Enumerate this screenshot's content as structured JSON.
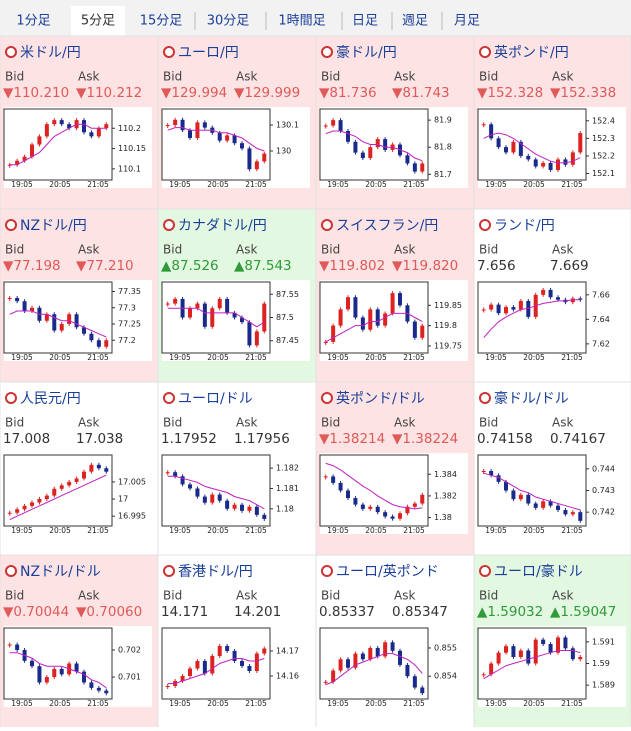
{
  "tabs": [
    "1分足",
    "5分足",
    "15分足",
    "30分足",
    "1時間足",
    "日足",
    "週足",
    "月足"
  ],
  "selected_tab": 1,
  "tiles": [
    {
      "name": "米ドル/円",
      "trend": "down",
      "bid_label": "Bid",
      "ask_label": "Ask",
      "bid": "▼110.210",
      "ask": "▼110.212",
      "ylim": [
        110.08,
        110.24
      ],
      "yticks": [
        110.2,
        110.15,
        110.1
      ],
      "xticks": [
        "19:05",
        "20:05",
        "21:05"
      ],
      "closes": [
        110.11,
        110.12,
        110.13,
        110.16,
        110.18,
        110.21,
        110.22,
        110.21,
        110.2,
        110.22,
        110.19,
        110.18,
        110.2,
        110.21
      ],
      "ma": [
        110.11,
        110.11,
        110.12,
        110.13,
        110.14,
        110.16,
        110.18,
        110.19,
        110.2,
        110.21,
        110.21,
        110.2,
        110.2,
        110.2
      ]
    },
    {
      "name": "ユーロ/円",
      "trend": "down",
      "bid_label": "Bid",
      "ask_label": "Ask",
      "bid": "▼129.994",
      "ask": "▼129.999",
      "ylim": [
        129.9,
        130.15
      ],
      "yticks": [
        130.1,
        130
      ],
      "xticks": [
        "19:05",
        "20:05",
        "21:05"
      ],
      "closes": [
        130.1,
        130.12,
        130.08,
        130.05,
        130.11,
        130.09,
        130.07,
        130.04,
        130.06,
        130.03,
        130.01,
        129.93,
        129.96,
        129.99
      ],
      "ma": [
        130.08,
        130.09,
        130.09,
        130.08,
        130.08,
        130.08,
        130.08,
        130.07,
        130.07,
        130.06,
        130.05,
        130.03,
        130.01,
        130
      ]
    },
    {
      "name": "豪ドル/円",
      "trend": "down",
      "bid_label": "Bid",
      "ask_label": "Ask",
      "bid": "▼81.736",
      "ask": "▼81.743",
      "ylim": [
        81.69,
        81.93
      ],
      "yticks": [
        81.9,
        81.8,
        81.7
      ],
      "xticks": [
        "19:05",
        "20:05",
        "21:05"
      ],
      "closes": [
        81.88,
        81.9,
        81.86,
        81.82,
        81.78,
        81.76,
        81.8,
        81.83,
        81.79,
        81.81,
        81.77,
        81.74,
        81.71,
        81.74
      ],
      "ma": [
        81.85,
        81.86,
        81.86,
        81.85,
        81.84,
        81.82,
        81.81,
        81.81,
        81.8,
        81.8,
        81.79,
        81.78,
        81.76,
        81.75
      ]
    },
    {
      "name": "英ポンド/円",
      "trend": "down",
      "bid_label": "Bid",
      "ask_label": "Ask",
      "bid": "▼152.328",
      "ask": "▼152.338",
      "ylim": [
        152.08,
        152.45
      ],
      "yticks": [
        152.4,
        152.3,
        152.2,
        152.1
      ],
      "xticks": [
        "19:05",
        "20:05",
        "21:05"
      ],
      "closes": [
        152.38,
        152.3,
        152.25,
        152.22,
        152.28,
        152.2,
        152.18,
        152.14,
        152.16,
        152.12,
        152.18,
        152.15,
        152.22,
        152.33
      ],
      "ma": [
        152.3,
        152.32,
        152.33,
        152.32,
        152.3,
        152.27,
        152.24,
        152.21,
        152.19,
        152.17,
        152.16,
        152.16,
        152.17,
        152.19
      ]
    },
    {
      "name": "NZドル/円",
      "trend": "down",
      "bid_label": "Bid",
      "ask_label": "Ask",
      "bid": "▼77.198",
      "ask": "▼77.210",
      "ylim": [
        77.17,
        77.37
      ],
      "yticks": [
        77.35,
        77.3,
        77.25,
        77.2
      ],
      "xticks": [
        "19:05",
        "20:05",
        "21:05"
      ],
      "closes": [
        77.33,
        77.32,
        77.29,
        77.3,
        77.26,
        77.28,
        77.23,
        77.25,
        77.28,
        77.24,
        77.22,
        77.2,
        77.18,
        77.2
      ],
      "ma": [
        77.28,
        77.29,
        77.29,
        77.29,
        77.28,
        77.28,
        77.27,
        77.26,
        77.26,
        77.25,
        77.24,
        77.23,
        77.22,
        77.21
      ]
    },
    {
      "name": "カナダドル/円",
      "trend": "up",
      "bid_label": "Bid",
      "ask_label": "Ask",
      "bid": "▲87.526",
      "ask": "▲87.543",
      "ylim": [
        87.43,
        87.57
      ],
      "yticks": [
        87.55,
        87.5,
        87.45
      ],
      "xticks": [
        "19:05",
        "20:05",
        "21:05"
      ],
      "closes": [
        87.53,
        87.54,
        87.5,
        87.52,
        87.53,
        87.48,
        87.52,
        87.54,
        87.51,
        87.5,
        87.49,
        87.44,
        87.47,
        87.53
      ],
      "ma": [
        87.52,
        87.52,
        87.52,
        87.52,
        87.52,
        87.51,
        87.51,
        87.51,
        87.51,
        87.51,
        87.5,
        87.49,
        87.48,
        87.49
      ]
    },
    {
      "name": "スイスフラン/円",
      "trend": "down",
      "bid_label": "Bid",
      "ask_label": "Ask",
      "bid": "▼119.802",
      "ask": "▼119.820",
      "ylim": [
        119.74,
        119.9
      ],
      "yticks": [
        119.85,
        119.8,
        119.75
      ],
      "xticks": [
        "19:05",
        "20:05",
        "21:05"
      ],
      "closes": [
        119.76,
        119.8,
        119.84,
        119.87,
        119.82,
        119.79,
        119.84,
        119.8,
        119.83,
        119.88,
        119.85,
        119.81,
        119.77,
        119.8
      ],
      "ma": [
        119.76,
        119.77,
        119.78,
        119.79,
        119.8,
        119.8,
        119.81,
        119.81,
        119.82,
        119.83,
        119.83,
        119.83,
        119.82,
        119.81
      ]
    },
    {
      "name": "ランド/円",
      "trend": "flat",
      "bid_label": "Bid",
      "ask_label": "Ask",
      "bid": "7.656",
      "ask": "7.669",
      "ylim": [
        7.615,
        7.668
      ],
      "yticks": [
        7.66,
        7.64,
        7.62
      ],
      "xticks": [
        "19:05",
        "20:05",
        "21:05"
      ],
      "closes": [
        7.648,
        7.652,
        7.645,
        7.65,
        7.648,
        7.655,
        7.642,
        7.66,
        7.664,
        7.658,
        7.656,
        7.654,
        7.657,
        7.656
      ],
      "ma": [
        7.625,
        7.632,
        7.638,
        7.642,
        7.645,
        7.648,
        7.649,
        7.651,
        7.653,
        7.654,
        7.655,
        7.655,
        7.656,
        7.656
      ]
    },
    {
      "name": "人民元/円",
      "trend": "flat",
      "bid_label": "Bid",
      "ask_label": "Ask",
      "bid": "17.008",
      "ask": "17.038",
      "ylim": [
        16.993,
        17.012
      ],
      "yticks": [
        17.005,
        17,
        16.995
      ],
      "xticks": [
        "19:05",
        "20:05",
        "21:05"
      ],
      "closes": [
        16.996,
        16.997,
        16.998,
        16.999,
        17,
        17.001,
        17.003,
        17.004,
        17.005,
        17.006,
        17.008,
        17.01,
        17.009,
        17.008
      ],
      "ma": [
        16.994,
        16.995,
        16.996,
        16.997,
        16.998,
        16.999,
        17,
        17.001,
        17.002,
        17.003,
        17.004,
        17.005,
        17.006,
        17.007
      ]
    },
    {
      "name": "ユーロ/ドル",
      "trend": "flat",
      "bid_label": "Bid",
      "ask_label": "Ask",
      "bid": "1.17952",
      "ask": "1.17956",
      "ylim": [
        1.1793,
        1.1825
      ],
      "yticks": [
        1.182,
        1.181,
        1.18
      ],
      "xticks": [
        "19:05",
        "20:05",
        "21:05"
      ],
      "closes": [
        1.1818,
        1.1816,
        1.1812,
        1.181,
        1.1806,
        1.1803,
        1.1807,
        1.1804,
        1.18,
        1.1802,
        1.1799,
        1.1801,
        1.1797,
        1.1795
      ],
      "ma": [
        1.1816,
        1.1816,
        1.1815,
        1.1814,
        1.1813,
        1.1811,
        1.181,
        1.1809,
        1.1808,
        1.1806,
        1.1805,
        1.1804,
        1.1802,
        1.18
      ]
    },
    {
      "name": "英ポンド/ドル",
      "trend": "down",
      "bid_label": "Bid",
      "ask_label": "Ask",
      "bid": "▼1.38214",
      "ask": "▼1.38224",
      "ylim": [
        1.3795,
        1.3855
      ],
      "yticks": [
        1.384,
        1.382,
        1.38
      ],
      "xticks": [
        "19:05",
        "20:05",
        "21:05"
      ],
      "closes": [
        1.3838,
        1.3832,
        1.3825,
        1.3818,
        1.3812,
        1.3808,
        1.381,
        1.3805,
        1.3801,
        1.3799,
        1.3804,
        1.381,
        1.3813,
        1.3821
      ],
      "ma": [
        1.385,
        1.3848,
        1.3844,
        1.3839,
        1.3834,
        1.3829,
        1.3825,
        1.382,
        1.3816,
        1.3812,
        1.381,
        1.3809,
        1.3808,
        1.3809
      ]
    },
    {
      "name": "豪ドル/ドル",
      "trend": "flat",
      "bid_label": "Bid",
      "ask_label": "Ask",
      "bid": "0.74158",
      "ask": "0.74167",
      "ylim": [
        0.7415,
        0.7445
      ],
      "yticks": [
        0.744,
        0.743,
        0.742
      ],
      "xticks": [
        "19:05",
        "20:05",
        "21:05"
      ],
      "closes": [
        0.7439,
        0.7437,
        0.7434,
        0.743,
        0.7426,
        0.7428,
        0.7424,
        0.7422,
        0.7425,
        0.7423,
        0.7421,
        0.7419,
        0.742,
        0.7416
      ],
      "ma": [
        0.7438,
        0.7437,
        0.7436,
        0.7434,
        0.7432,
        0.743,
        0.7429,
        0.7427,
        0.7426,
        0.7425,
        0.7424,
        0.7423,
        0.7422,
        0.7421
      ]
    },
    {
      "name": "NZドル/ドル",
      "trend": "down",
      "bid_label": "Bid",
      "ask_label": "Ask",
      "bid": "▼0.70044",
      "ask": "▼0.70060",
      "ylim": [
        0.7003,
        0.7027
      ],
      "yticks": [
        0.702,
        0.701
      ],
      "xticks": [
        "19:05",
        "20:05",
        "21:05"
      ],
      "closes": [
        0.7022,
        0.702,
        0.7016,
        0.7014,
        0.7008,
        0.701,
        0.7013,
        0.7011,
        0.7015,
        0.7012,
        0.7008,
        0.7006,
        0.7005,
        0.7004
      ],
      "ma": [
        0.7019,
        0.7019,
        0.7018,
        0.7017,
        0.7015,
        0.7014,
        0.7014,
        0.7014,
        0.7013,
        0.7012,
        0.7011,
        0.7009,
        0.7008,
        0.7006
      ]
    },
    {
      "name": "香港ドル/円",
      "trend": "flat",
      "bid_label": "Bid",
      "ask_label": "Ask",
      "bid": "14.171",
      "ask": "14.201",
      "ylim": [
        14.152,
        14.178
      ],
      "yticks": [
        14.17,
        14.16
      ],
      "xticks": [
        "19:05",
        "20:05",
        "21:05"
      ],
      "closes": [
        14.156,
        14.158,
        14.16,
        14.163,
        14.166,
        14.161,
        14.168,
        14.172,
        14.17,
        14.166,
        14.164,
        14.162,
        14.169,
        14.171
      ],
      "ma": [
        14.157,
        14.157,
        14.158,
        14.159,
        14.16,
        14.161,
        14.163,
        14.165,
        14.166,
        14.167,
        14.167,
        14.166,
        14.166,
        14.167
      ]
    },
    {
      "name": "ユーロ/英ポンド",
      "trend": "flat",
      "bid_label": "Bid",
      "ask_label": "Ask",
      "bid": "0.85337",
      "ask": "0.85347",
      "ylim": [
        0.8533,
        0.8556
      ],
      "yticks": [
        0.855,
        0.854
      ],
      "xticks": [
        "19:05",
        "20:05",
        "21:05"
      ],
      "closes": [
        0.8538,
        0.8542,
        0.8546,
        0.8543,
        0.8548,
        0.8546,
        0.855,
        0.8547,
        0.8552,
        0.8549,
        0.8544,
        0.854,
        0.8536,
        0.8534
      ],
      "ma": [
        0.8537,
        0.8538,
        0.854,
        0.8542,
        0.8544,
        0.8545,
        0.8546,
        0.8547,
        0.8548,
        0.8548,
        0.8547,
        0.8546,
        0.8544,
        0.8541
      ]
    },
    {
      "name": "ユーロ/豪ドル",
      "trend": "up",
      "bid_label": "Bid",
      "ask_label": "Ask",
      "bid": "▲1.59032",
      "ask": "▲1.59047",
      "ylim": [
        1.5885,
        1.5915
      ],
      "yticks": [
        1.591,
        1.59,
        1.589
      ],
      "xticks": [
        "19:05",
        "20:05",
        "21:05"
      ],
      "closes": [
        1.5895,
        1.59,
        1.5905,
        1.5908,
        1.5903,
        1.5906,
        1.59,
        1.5911,
        1.5909,
        1.5905,
        1.5912,
        1.5907,
        1.5902,
        1.5903
      ],
      "ma": [
        1.5893,
        1.5895,
        1.5897,
        1.5899,
        1.59,
        1.5901,
        1.5902,
        1.5903,
        1.5904,
        1.5905,
        1.5906,
        1.5906,
        1.5906,
        1.5905
      ]
    }
  ]
}
